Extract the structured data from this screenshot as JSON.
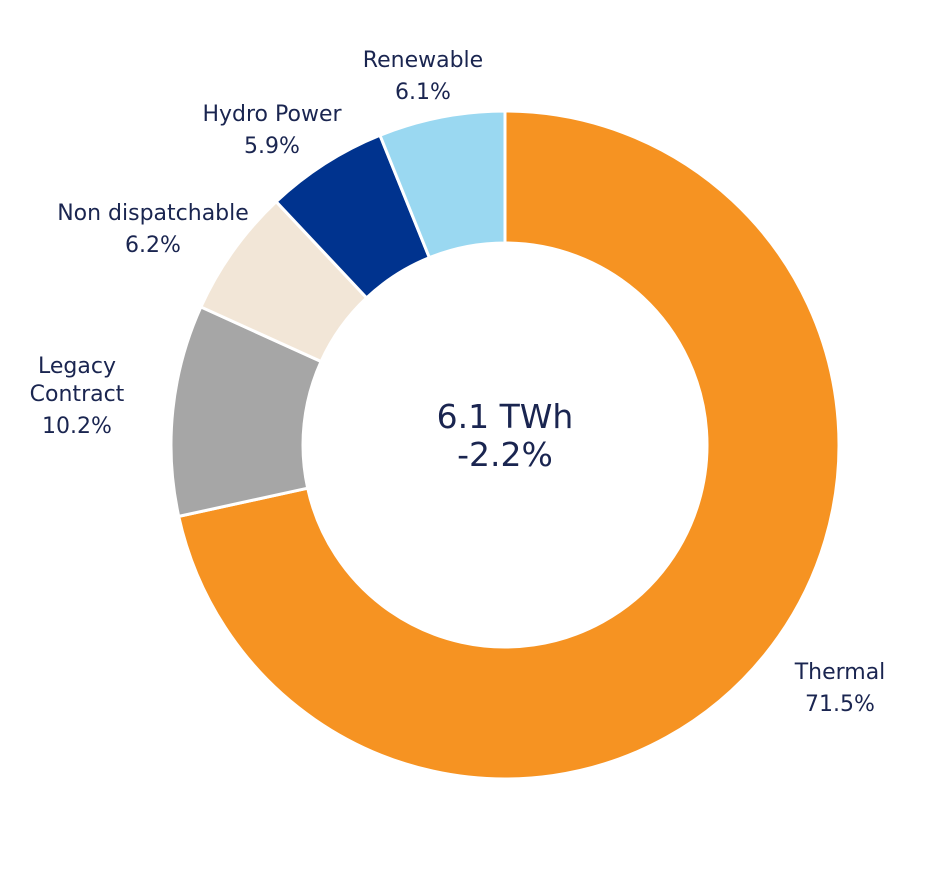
{
  "chart_data": {
    "type": "pie",
    "subtype": "donut",
    "center": {
      "value": "6.1 TWh",
      "change": "-2.2%"
    },
    "slices": [
      {
        "label": "Thermal",
        "label_lines": [
          "Thermal"
        ],
        "percent_text": "71.5%",
        "value": 71.5,
        "color": "#f69322"
      },
      {
        "label": "Legacy Contract",
        "label_lines": [
          "Legacy",
          "Contract"
        ],
        "percent_text": "10.2%",
        "value": 10.2,
        "color": "#a6a6a6"
      },
      {
        "label": "Non dispatchable",
        "label_lines": [
          "Non dispatchable"
        ],
        "percent_text": "6.2%",
        "value": 6.2,
        "color": "#f2e6d7"
      },
      {
        "label": "Hydro Power",
        "label_lines": [
          "Hydro Power"
        ],
        "percent_text": "5.9%",
        "value": 5.9,
        "color": "#00338e"
      },
      {
        "label": "Renewable",
        "label_lines": [
          "Renewable"
        ],
        "percent_text": "6.1%",
        "value": 6.1,
        "color": "#9ad8f1"
      }
    ],
    "start": "12 o'clock",
    "direction": "clockwise"
  }
}
